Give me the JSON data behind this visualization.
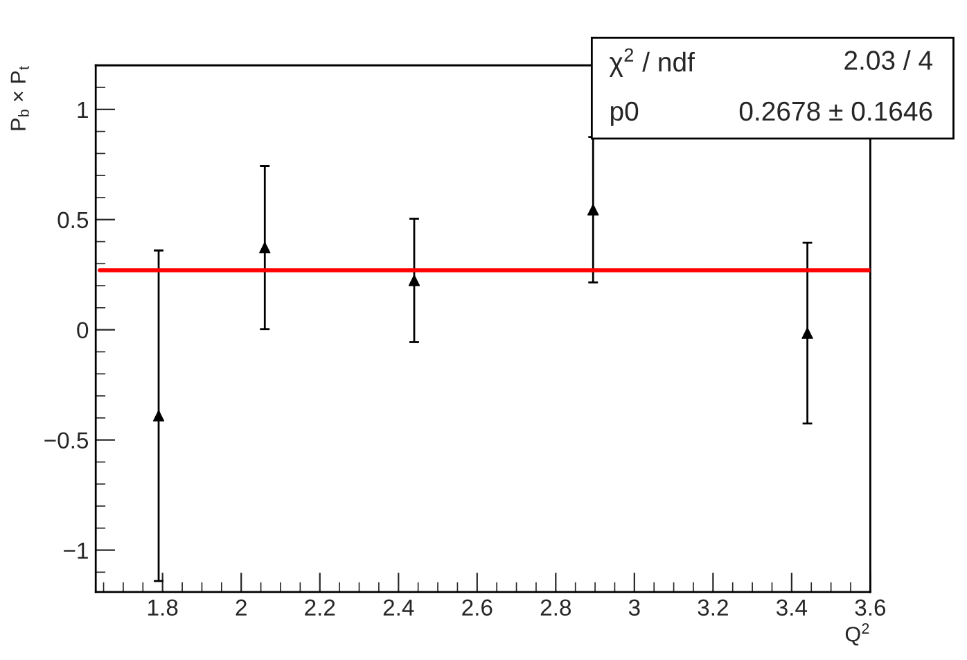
{
  "chart_data": {
    "type": "scatter",
    "xlabel": "Q$^{2}$",
    "ylabel": "P$_{b}$ × P$_{t}$",
    "series": [
      {
        "color": "#000000",
        "marker": "triangle",
        "x": [
          1.79,
          2.06,
          2.44,
          2.895,
          3.44
        ],
        "values": [
          -0.39,
          0.373,
          0.224,
          0.545,
          -0.015
        ],
        "errors": [
          0.75,
          0.37,
          0.28,
          0.33,
          0.41
        ]
      },
      {
        "type": "line",
        "color": "#ff0000",
        "marker": "none",
        "x": [
          1.64,
          3.6
        ],
        "values": [
          0.27,
          0.27
        ]
      }
    ],
    "xlim": [
      1.63,
      3.6
    ],
    "ylim": [
      -1.19,
      1.2
    ],
    "xticks": [
      1.8,
      2,
      2.2,
      2.4,
      2.6,
      2.8,
      3,
      3.2,
      3.4,
      3.6
    ],
    "yticks": [
      {
        "value": -1,
        "label": "−1"
      },
      {
        "value": -0.5,
        "label": "−0.5"
      },
      0,
      0.5,
      1
    ],
    "grid": false,
    "legend": false,
    "annotations": [
      "χ$^{2}$ / ndf",
      "2.03 / 4",
      "p0",
      "0.2678 ± 0.1646"
    ]
  }
}
